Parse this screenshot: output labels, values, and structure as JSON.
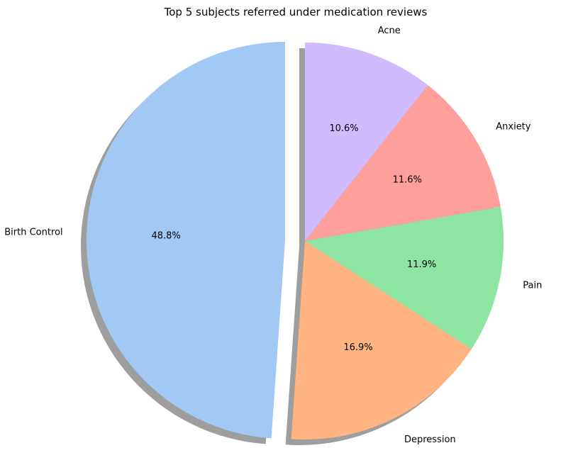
{
  "chart_data": {
    "type": "pie",
    "title": "Top 5 subjects referred under medication reviews",
    "categories": [
      "Birth Control",
      "Depression",
      "Pain",
      "Anxiety",
      "Acne"
    ],
    "values": [
      48.8,
      16.9,
      11.9,
      11.6,
      10.6
    ],
    "value_labels": [
      "48.8%",
      "16.9%",
      "11.9%",
      "11.6%",
      "10.6%"
    ],
    "colors": [
      "#a1c9f4",
      "#ffb482",
      "#8de5a1",
      "#ff9f9b",
      "#d0bbff"
    ],
    "exploded": [
      "Birth Control"
    ],
    "shadow": true,
    "legend": "none"
  }
}
